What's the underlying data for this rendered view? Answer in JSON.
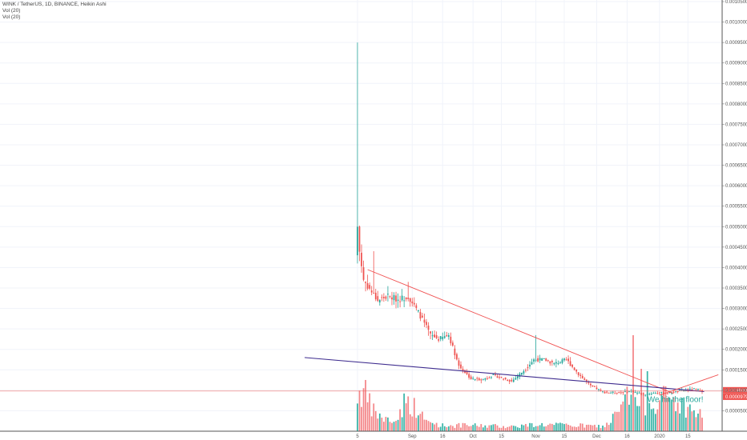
{
  "header": {
    "symbol_line": "WINK / TetherUS, 1D, BINANCE, Heikin Ashi",
    "indicators": [
      "Vol (20)",
      "Vol (20)"
    ]
  },
  "colors": {
    "up": "#26a69a",
    "down": "#ef5350",
    "up_volume": "#3ab5a8",
    "down_volume": "#f4878a",
    "grid": "#f0f3fa",
    "axis_text": "#555555",
    "trend_red": "#f05050",
    "trend_purple": "#3f2d8f",
    "price_line": "#ef5350",
    "price_tag": "#ef5350"
  },
  "chart_data": {
    "type": "candlestick",
    "style": "Heikin Ashi",
    "symbol": "WINK / TetherUS",
    "interval": "1D",
    "exchange": "BINANCE",
    "y_axis": {
      "position": "right",
      "range": [
        0.0,
        0.00105
      ],
      "ticks": [
        "0.0010500",
        "0.0010000",
        "0.0009500",
        "0.0009000",
        "0.0008500",
        "0.0008000",
        "0.0007500",
        "0.0007000",
        "0.0006500",
        "0.0006000",
        "0.0005500",
        "0.0005000",
        "0.0004500",
        "0.0004000",
        "0.0003500",
        "0.0003000",
        "0.0002500",
        "0.0002000",
        "0.0001500",
        "0.0001000",
        "0.0000500"
      ]
    },
    "x_axis": {
      "first_date": "2019-08-05",
      "last_date": "2020-01-22",
      "ticks": [
        {
          "label": "5",
          "date": "2019-08-05"
        },
        {
          "label": "Sep",
          "date": "2019-09-01"
        },
        {
          "label": "16",
          "date": "2019-09-16"
        },
        {
          "label": "Oct",
          "date": "2019-10-01"
        },
        {
          "label": "15",
          "date": "2019-10-15"
        },
        {
          "label": "Nov",
          "date": "2019-11-01"
        },
        {
          "label": "15",
          "date": "2019-11-15"
        },
        {
          "label": "Dec",
          "date": "2019-12-01"
        },
        {
          "label": "16",
          "date": "2019-12-16"
        },
        {
          "label": "2020",
          "date": "2020-01-01"
        },
        {
          "label": "15",
          "date": "2020-01-15"
        }
      ]
    },
    "price_levels": [
      {
        "value": "0.0000981",
        "price": 9.81e-05
      },
      {
        "value": "0.0000979",
        "price": 9.79e-05
      }
    ],
    "trendlines": [
      {
        "name": "resistance",
        "from": {
          "date": "2019-08-10",
          "price": 0.000395
        },
        "to": {
          "date": "2020-01-08",
          "price": 9.2e-05
        }
      },
      {
        "name": "support",
        "from": {
          "date": "2019-07-10",
          "price": 0.00018
        },
        "to": {
          "date": "2020-01-23",
          "price": 9.7e-05
        }
      },
      {
        "name": "breakout",
        "from": {
          "date": "2020-01-01",
          "price": 8.8e-05
        },
        "to": {
          "date": "2020-01-30",
          "price": 0.000138
        }
      }
    ],
    "annotation": {
      "text": "We hit the floor!",
      "date": "2019-12-26",
      "price": 7.1e-05
    },
    "series": [
      {
        "name": "price",
        "anchors": [
          {
            "date": "2019-08-05",
            "price": 0.0005
          },
          {
            "date": "2019-08-06",
            "price": 0.00044
          },
          {
            "date": "2019-08-08",
            "price": 0.00037
          },
          {
            "date": "2019-08-12",
            "price": 0.00034
          },
          {
            "date": "2019-08-15",
            "price": 0.00032
          },
          {
            "date": "2019-08-20",
            "price": 0.00033
          },
          {
            "date": "2019-08-25",
            "price": 0.000322
          },
          {
            "date": "2019-08-30",
            "price": 0.00033
          },
          {
            "date": "2019-09-05",
            "price": 0.000282
          },
          {
            "date": "2019-09-10",
            "price": 0.000235
          },
          {
            "date": "2019-09-14",
            "price": 0.000225
          },
          {
            "date": "2019-09-19",
            "price": 0.000235
          },
          {
            "date": "2019-09-24",
            "price": 0.00016
          },
          {
            "date": "2019-09-30",
            "price": 0.000128
          },
          {
            "date": "2019-10-06",
            "price": 0.000127
          },
          {
            "date": "2019-10-11",
            "price": 0.000137
          },
          {
            "date": "2019-10-20",
            "price": 0.000122
          },
          {
            "date": "2019-10-26",
            "price": 0.000148
          },
          {
            "date": "2019-10-31",
            "price": 0.000175
          },
          {
            "date": "2019-11-05",
            "price": 0.000175
          },
          {
            "date": "2019-11-10",
            "price": 0.000165
          },
          {
            "date": "2019-11-16",
            "price": 0.000175
          },
          {
            "date": "2019-11-22",
            "price": 0.00014
          },
          {
            "date": "2019-11-28",
            "price": 0.00011
          },
          {
            "date": "2019-12-05",
            "price": 9.5e-05
          },
          {
            "date": "2019-12-12",
            "price": 9.4e-05
          },
          {
            "date": "2019-12-18",
            "price": 9.8e-05
          },
          {
            "date": "2019-12-24",
            "price": 9e-05
          },
          {
            "date": "2019-12-30",
            "price": 9.4e-05
          },
          {
            "date": "2020-01-05",
            "price": 9.3e-05
          },
          {
            "date": "2020-01-12",
            "price": 0.0001
          },
          {
            "date": "2020-01-18",
            "price": 0.000103
          },
          {
            "date": "2020-01-22",
            "price": 9.9e-05
          }
        ]
      },
      {
        "name": "volume",
        "anchors": [
          {
            "date": "2019-08-05",
            "level": 0.75
          },
          {
            "date": "2019-08-08",
            "level": 0.85
          },
          {
            "date": "2019-08-12",
            "level": 0.45
          },
          {
            "date": "2019-08-18",
            "level": 0.25
          },
          {
            "date": "2019-08-24",
            "level": 0.2
          },
          {
            "date": "2019-08-28",
            "level": 0.6
          },
          {
            "date": "2019-09-01",
            "level": 0.55
          },
          {
            "date": "2019-09-08",
            "level": 0.2
          },
          {
            "date": "2019-09-16",
            "level": 0.12
          },
          {
            "date": "2019-10-01",
            "level": 0.12
          },
          {
            "date": "2019-10-20",
            "level": 0.1
          },
          {
            "date": "2019-11-02",
            "level": 0.14
          },
          {
            "date": "2019-11-20",
            "level": 0.12
          },
          {
            "date": "2019-12-05",
            "level": 0.1
          },
          {
            "date": "2019-12-12",
            "level": 0.4
          },
          {
            "date": "2019-12-16",
            "level": 0.7
          },
          {
            "date": "2019-12-22",
            "level": 0.55
          },
          {
            "date": "2019-12-28",
            "level": 0.6
          },
          {
            "date": "2020-01-04",
            "level": 0.7
          },
          {
            "date": "2020-01-10",
            "level": 0.6
          },
          {
            "date": "2020-01-16",
            "level": 0.45
          },
          {
            "date": "2020-01-22",
            "level": 0.32
          }
        ]
      }
    ]
  }
}
